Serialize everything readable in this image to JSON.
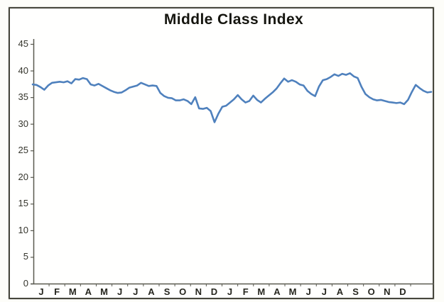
{
  "chart_data": {
    "type": "line",
    "title": "Middle Class Index",
    "xlabel": "",
    "ylabel": "",
    "ylim": [
      0,
      45
    ],
    "y_ticks": [
      0,
      5,
      10,
      15,
      20,
      25,
      30,
      35,
      40,
      45
    ],
    "x_tick_labels": [
      "J",
      "F",
      "M",
      "A",
      "M",
      "J",
      "J",
      "A",
      "S",
      "O",
      "N",
      "D",
      "J",
      "F",
      "M",
      "A",
      "M",
      "J",
      "J",
      "A",
      "S",
      "O",
      "N",
      "D"
    ],
    "grid": false,
    "legend": false,
    "series": [
      {
        "name": "Middle Class Index",
        "sampling": "weekly",
        "values": [
          37.4,
          37.3,
          36.9,
          36.4,
          37.2,
          37.7,
          37.8,
          37.9,
          37.8,
          38.0,
          37.6,
          38.4,
          38.3,
          38.6,
          38.4,
          37.4,
          37.2,
          37.5,
          37.1,
          36.7,
          36.3,
          36.0,
          35.8,
          35.9,
          36.3,
          36.8,
          37.0,
          37.2,
          37.7,
          37.4,
          37.1,
          37.2,
          37.1,
          35.8,
          35.2,
          34.9,
          34.8,
          34.4,
          34.4,
          34.6,
          34.3,
          33.7,
          35.0,
          32.9,
          32.8,
          33.0,
          32.4,
          30.3,
          31.9,
          33.2,
          33.4,
          34.0,
          34.6,
          35.4,
          34.6,
          34.0,
          34.3,
          35.3,
          34.5,
          34.0,
          34.7,
          35.3,
          35.9,
          36.6,
          37.6,
          38.5,
          37.9,
          38.2,
          37.9,
          37.4,
          37.2,
          36.2,
          35.6,
          35.2,
          37.0,
          38.2,
          38.4,
          38.8,
          39.3,
          39.0,
          39.4,
          39.2,
          39.5,
          38.9,
          38.6,
          36.9,
          35.6,
          35.0,
          34.6,
          34.4,
          34.5,
          34.3,
          34.1,
          34.0,
          33.9,
          34.0,
          33.7,
          34.5,
          36.0,
          37.3,
          36.7,
          36.2,
          35.9,
          36.0
        ]
      }
    ],
    "colors": {
      "line": "#4f81bd",
      "axis": "#5a5a50",
      "title_text": "#15150f",
      "tick_text": "#35352c",
      "scan_border": "#46463c"
    }
  }
}
